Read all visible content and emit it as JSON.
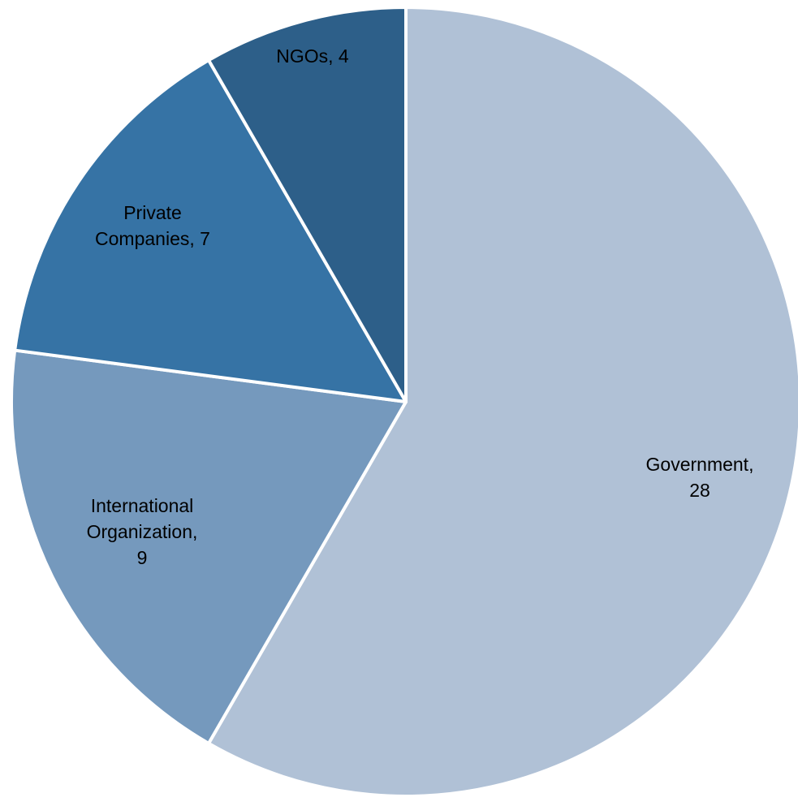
{
  "chart_data": {
    "type": "pie",
    "start_angle_deg": 0,
    "direction": "clockwise",
    "legend": "none",
    "slices": [
      {
        "label": "Government",
        "value": 28,
        "color": "#B0C1D6",
        "text_lines": [
          "Government,",
          "28"
        ]
      },
      {
        "label": "International Organization",
        "value": 9,
        "color": "#7599BD",
        "text_lines": [
          "International",
          "Organization,",
          "9"
        ]
      },
      {
        "label": "Private Companies",
        "value": 7,
        "color": "#3673A5",
        "text_lines": [
          "Private",
          "Companies, 7"
        ]
      },
      {
        "label": "NGOs",
        "value": 4,
        "color": "#2D5F89",
        "text_lines": [
          "NGOs, 4"
        ]
      }
    ]
  }
}
